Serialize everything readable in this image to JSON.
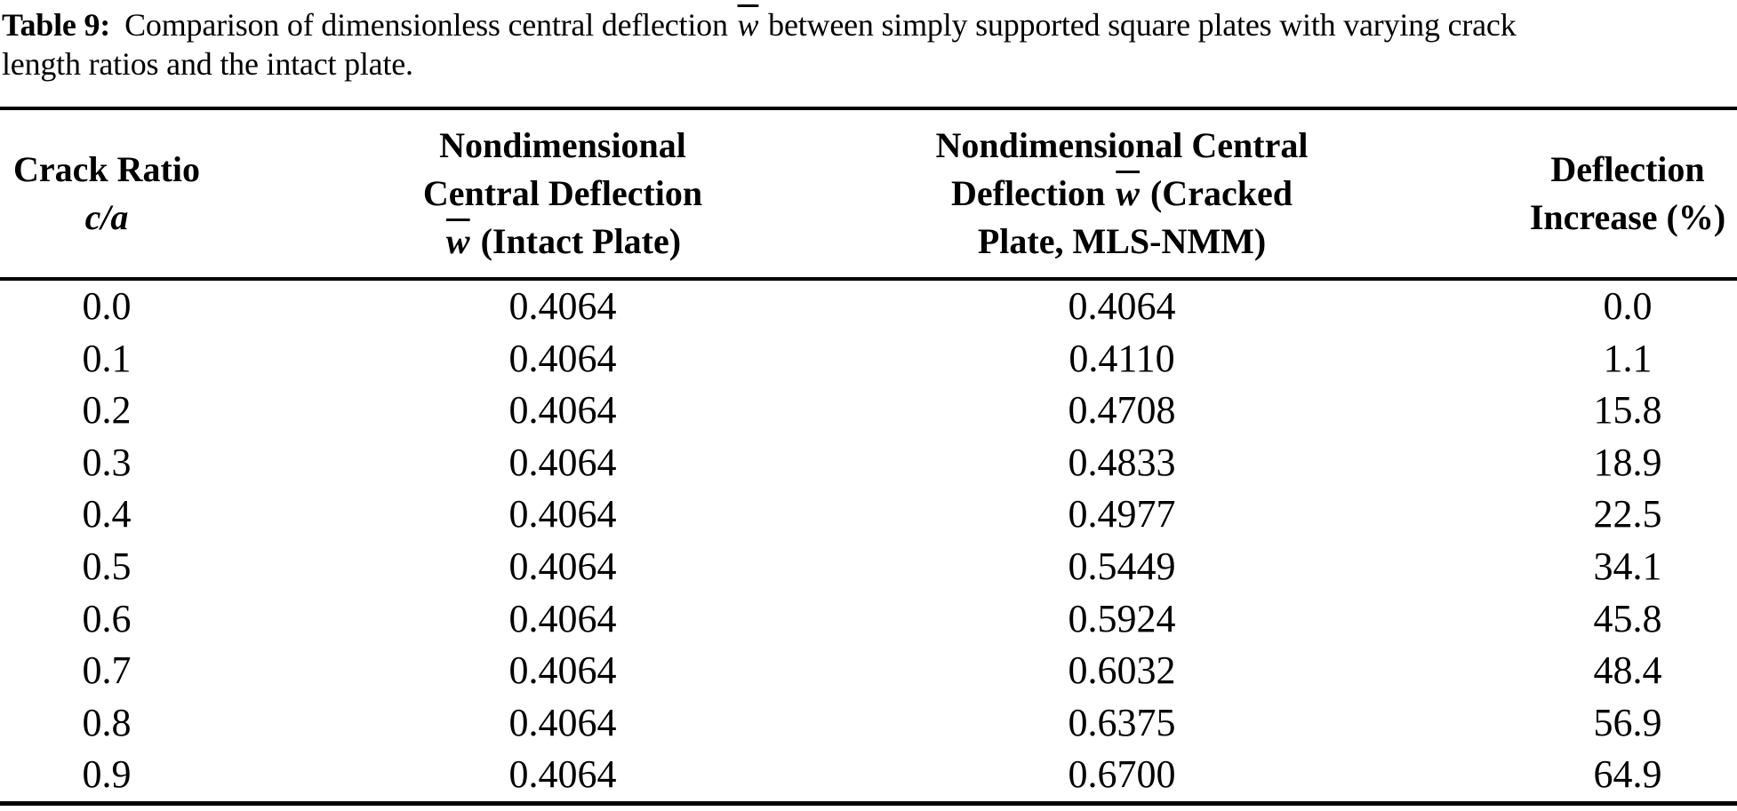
{
  "caption": {
    "label": "Table 9:",
    "line1_before_w": "Comparison of dimensionless central deflection ",
    "wbar": "w",
    "line1_after_w": " between simply supported square plates with varying crack",
    "line2": "length ratios and the intact plate."
  },
  "table": {
    "headers": {
      "crack_ratio": {
        "line1": "Crack Ratio",
        "line2": "c/a"
      },
      "intact": {
        "line1": "Nondimensional",
        "line2": "Central Deflection",
        "line3_w": "w",
        "line3_after": " (Intact Plate)"
      },
      "cracked": {
        "line1": "Nondimensional Central",
        "line2_before": "Deflection ",
        "line2_w": "w",
        "line2_after": " (Cracked",
        "line3": "Plate, MLS-NMM)"
      },
      "increase": {
        "line1": "Deflection",
        "line2": "Increase (%)"
      }
    },
    "rows": [
      {
        "ca": "0.0",
        "intact": "0.4064",
        "cracked": "0.4064",
        "increase": "0.0"
      },
      {
        "ca": "0.1",
        "intact": "0.4064",
        "cracked": "0.4110",
        "increase": "1.1"
      },
      {
        "ca": "0.2",
        "intact": "0.4064",
        "cracked": "0.4708",
        "increase": "15.8"
      },
      {
        "ca": "0.3",
        "intact": "0.4064",
        "cracked": "0.4833",
        "increase": "18.9"
      },
      {
        "ca": "0.4",
        "intact": "0.4064",
        "cracked": "0.4977",
        "increase": "22.5"
      },
      {
        "ca": "0.5",
        "intact": "0.4064",
        "cracked": "0.5449",
        "increase": "34.1"
      },
      {
        "ca": "0.6",
        "intact": "0.4064",
        "cracked": "0.5924",
        "increase": "45.8"
      },
      {
        "ca": "0.7",
        "intact": "0.4064",
        "cracked": "0.6032",
        "increase": "48.4"
      },
      {
        "ca": "0.8",
        "intact": "0.4064",
        "cracked": "0.6375",
        "increase": "56.9"
      },
      {
        "ca": "0.9",
        "intact": "0.4064",
        "cracked": "0.6700",
        "increase": "64.9"
      }
    ]
  },
  "colors": {
    "text": "#000000",
    "background": "#ffffff",
    "rule": "#000000"
  }
}
